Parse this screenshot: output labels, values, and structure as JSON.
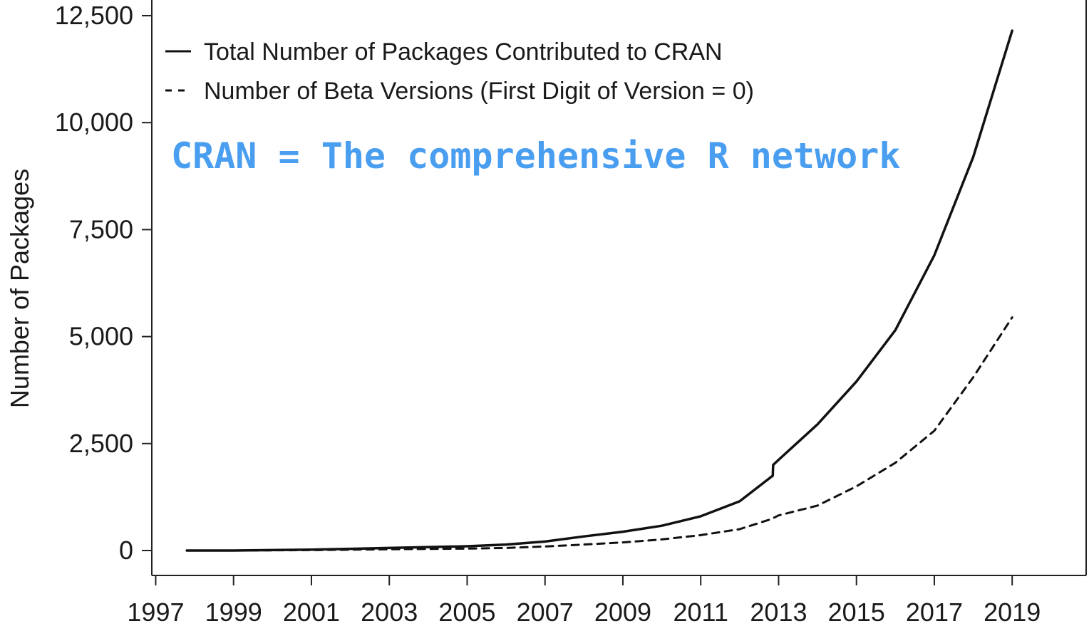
{
  "chart_data": {
    "type": "line",
    "ylabel": "Number of Packages",
    "xlabel": "",
    "xlim": [
      1996.9,
      2020.9
    ],
    "ylim": [
      0,
      12500
    ],
    "x_ticks": [
      "1997",
      "1999",
      "2001",
      "2003",
      "2005",
      "2007",
      "2009",
      "2011",
      "2013",
      "2015",
      "2017",
      "2019"
    ],
    "y_ticks": [
      "0",
      "2,500",
      "5,000",
      "7,500",
      "10,000",
      "12,500"
    ],
    "y_tick_values": [
      0,
      2500,
      5000,
      7500,
      10000,
      12500
    ],
    "grid": false,
    "legend_position": "top-left",
    "annotation": "CRAN = The comprehensive R network",
    "annotation_color": "#4a9ef0",
    "series": [
      {
        "name": "Total Number of Packages Contributed to CRAN",
        "style": "solid",
        "color": "#111111",
        "points": [
          [
            1997.8,
            0
          ],
          [
            1999,
            0
          ],
          [
            2001,
            20
          ],
          [
            2003,
            60
          ],
          [
            2005,
            100
          ],
          [
            2006,
            140
          ],
          [
            2007,
            210
          ],
          [
            2008,
            330
          ],
          [
            2009,
            440
          ],
          [
            2010,
            580
          ],
          [
            2011,
            800
          ],
          [
            2012,
            1150
          ],
          [
            2012.85,
            1750
          ],
          [
            2012.86,
            2000
          ],
          [
            2013,
            2120
          ],
          [
            2014,
            2950
          ],
          [
            2015,
            3950
          ],
          [
            2016,
            5150
          ],
          [
            2017,
            6900
          ],
          [
            2018,
            9200
          ],
          [
            2019,
            12150
          ]
        ]
      },
      {
        "name": "Number of Beta Versions (First Digit of Version = 0)",
        "style": "dashed",
        "color": "#111111",
        "points": [
          [
            1997.8,
            0
          ],
          [
            1999,
            0
          ],
          [
            2001,
            10
          ],
          [
            2003,
            30
          ],
          [
            2005,
            45
          ],
          [
            2006,
            60
          ],
          [
            2007,
            95
          ],
          [
            2008,
            140
          ],
          [
            2009,
            190
          ],
          [
            2010,
            260
          ],
          [
            2011,
            360
          ],
          [
            2012,
            500
          ],
          [
            2012.8,
            730
          ],
          [
            2013,
            820
          ],
          [
            2014,
            1050
          ],
          [
            2015,
            1500
          ],
          [
            2016,
            2050
          ],
          [
            2017,
            2800
          ],
          [
            2018,
            4050
          ],
          [
            2019,
            5450
          ]
        ]
      }
    ]
  }
}
